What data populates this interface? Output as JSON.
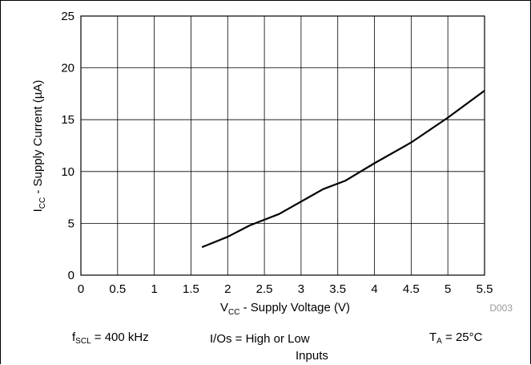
{
  "chart_data": {
    "type": "line",
    "xlabel": {
      "main": "V",
      "sub": "CC",
      "rest": " - Supply Voltage (V)"
    },
    "ylabel": {
      "main": "I",
      "sub": "CC",
      "rest": " - Supply Current (µA)"
    },
    "xlim": [
      0,
      5.5
    ],
    "ylim": [
      0,
      25
    ],
    "x_ticks": [
      "0",
      "0.5",
      "1",
      "1.5",
      "2",
      "2.5",
      "3",
      "3.5",
      "4",
      "4.5",
      "5",
      "5.5"
    ],
    "y_ticks": [
      "0",
      "5",
      "10",
      "15",
      "20",
      "25"
    ],
    "grid": true,
    "series": [
      {
        "x": [
          1.65,
          2.0,
          2.3,
          2.7,
          3.0,
          3.3,
          3.6,
          4.0,
          4.5,
          5.0,
          5.5
        ],
        "y": [
          2.7,
          3.7,
          4.8,
          5.9,
          7.1,
          8.3,
          9.1,
          10.8,
          12.8,
          15.2,
          17.8
        ]
      }
    ],
    "figure_id": "D003"
  },
  "conditions": {
    "fscl": {
      "main": "f",
      "sub": "SCL",
      "rest": " = 400 kHz"
    },
    "ios_line1": "I/Os = High or Low",
    "ios_line2": "Inputs",
    "ta": {
      "main": "T",
      "sub": "A",
      "rest": " = 25°C"
    }
  }
}
